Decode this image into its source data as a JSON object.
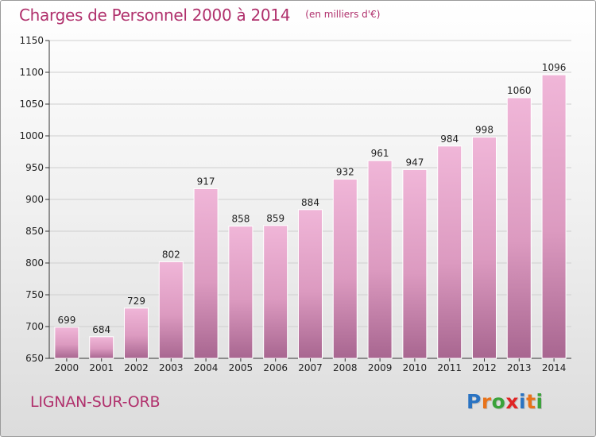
{
  "header": {
    "title": "Charges de Personnel 2000 à 2014",
    "subtitle": "(en milliers d'€)"
  },
  "footer": {
    "commune": "LIGNAN-SUR-ORB",
    "logo_text": "Proxiti",
    "logo_colors": [
      "#2a73c2",
      "#e8731a",
      "#3aa23a",
      "#e02424",
      "#2a73c2",
      "#e8731a",
      "#3aa23a"
    ]
  },
  "colors": {
    "bar_light": "#f0b6d8",
    "bar_mid": "#dc9ac0",
    "bar_dark": "#a86690",
    "accent": "#b0306c"
  },
  "chart_data": {
    "type": "bar",
    "categories": [
      "2000",
      "2001",
      "2002",
      "2003",
      "2004",
      "2005",
      "2006",
      "2007",
      "2008",
      "2009",
      "2010",
      "2011",
      "2012",
      "2013",
      "2014"
    ],
    "values": [
      699,
      684,
      729,
      802,
      917,
      858,
      859,
      884,
      932,
      961,
      947,
      984,
      998,
      1060,
      1096
    ],
    "value_labels": [
      "699",
      "684",
      "729",
      "802",
      "917",
      "858",
      "859",
      "884",
      "932",
      "961",
      "947",
      "984",
      "998",
      "1060",
      "1096"
    ],
    "ylim": [
      650,
      1150
    ],
    "yticks": [
      650,
      700,
      750,
      800,
      850,
      900,
      950,
      1000,
      1050,
      1100,
      1150
    ],
    "ytick_labels": [
      "650",
      "700",
      "750",
      "800",
      "850",
      "900",
      "950",
      "1000",
      "1050",
      "1100",
      "1150"
    ],
    "grid": true
  }
}
